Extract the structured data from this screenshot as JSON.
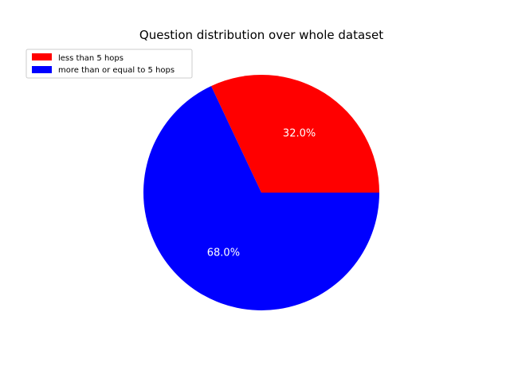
{
  "chart_data": {
    "type": "pie",
    "title": "Question distribution over whole dataset",
    "categories": [
      "less than 5 hops",
      "more than or equal to 5 hops"
    ],
    "values": [
      32.0,
      68.0
    ],
    "value_labels": [
      "32.0%",
      "68.0%"
    ],
    "colors": [
      "#ff0000",
      "#0000ff"
    ],
    "label_color": "#ffffff",
    "start_angle_deg": 0,
    "direction": "counterclockwise",
    "legend": {
      "position": "upper-left",
      "entries": [
        "less than 5 hops",
        "more than or equal to 5 hops"
      ]
    }
  }
}
